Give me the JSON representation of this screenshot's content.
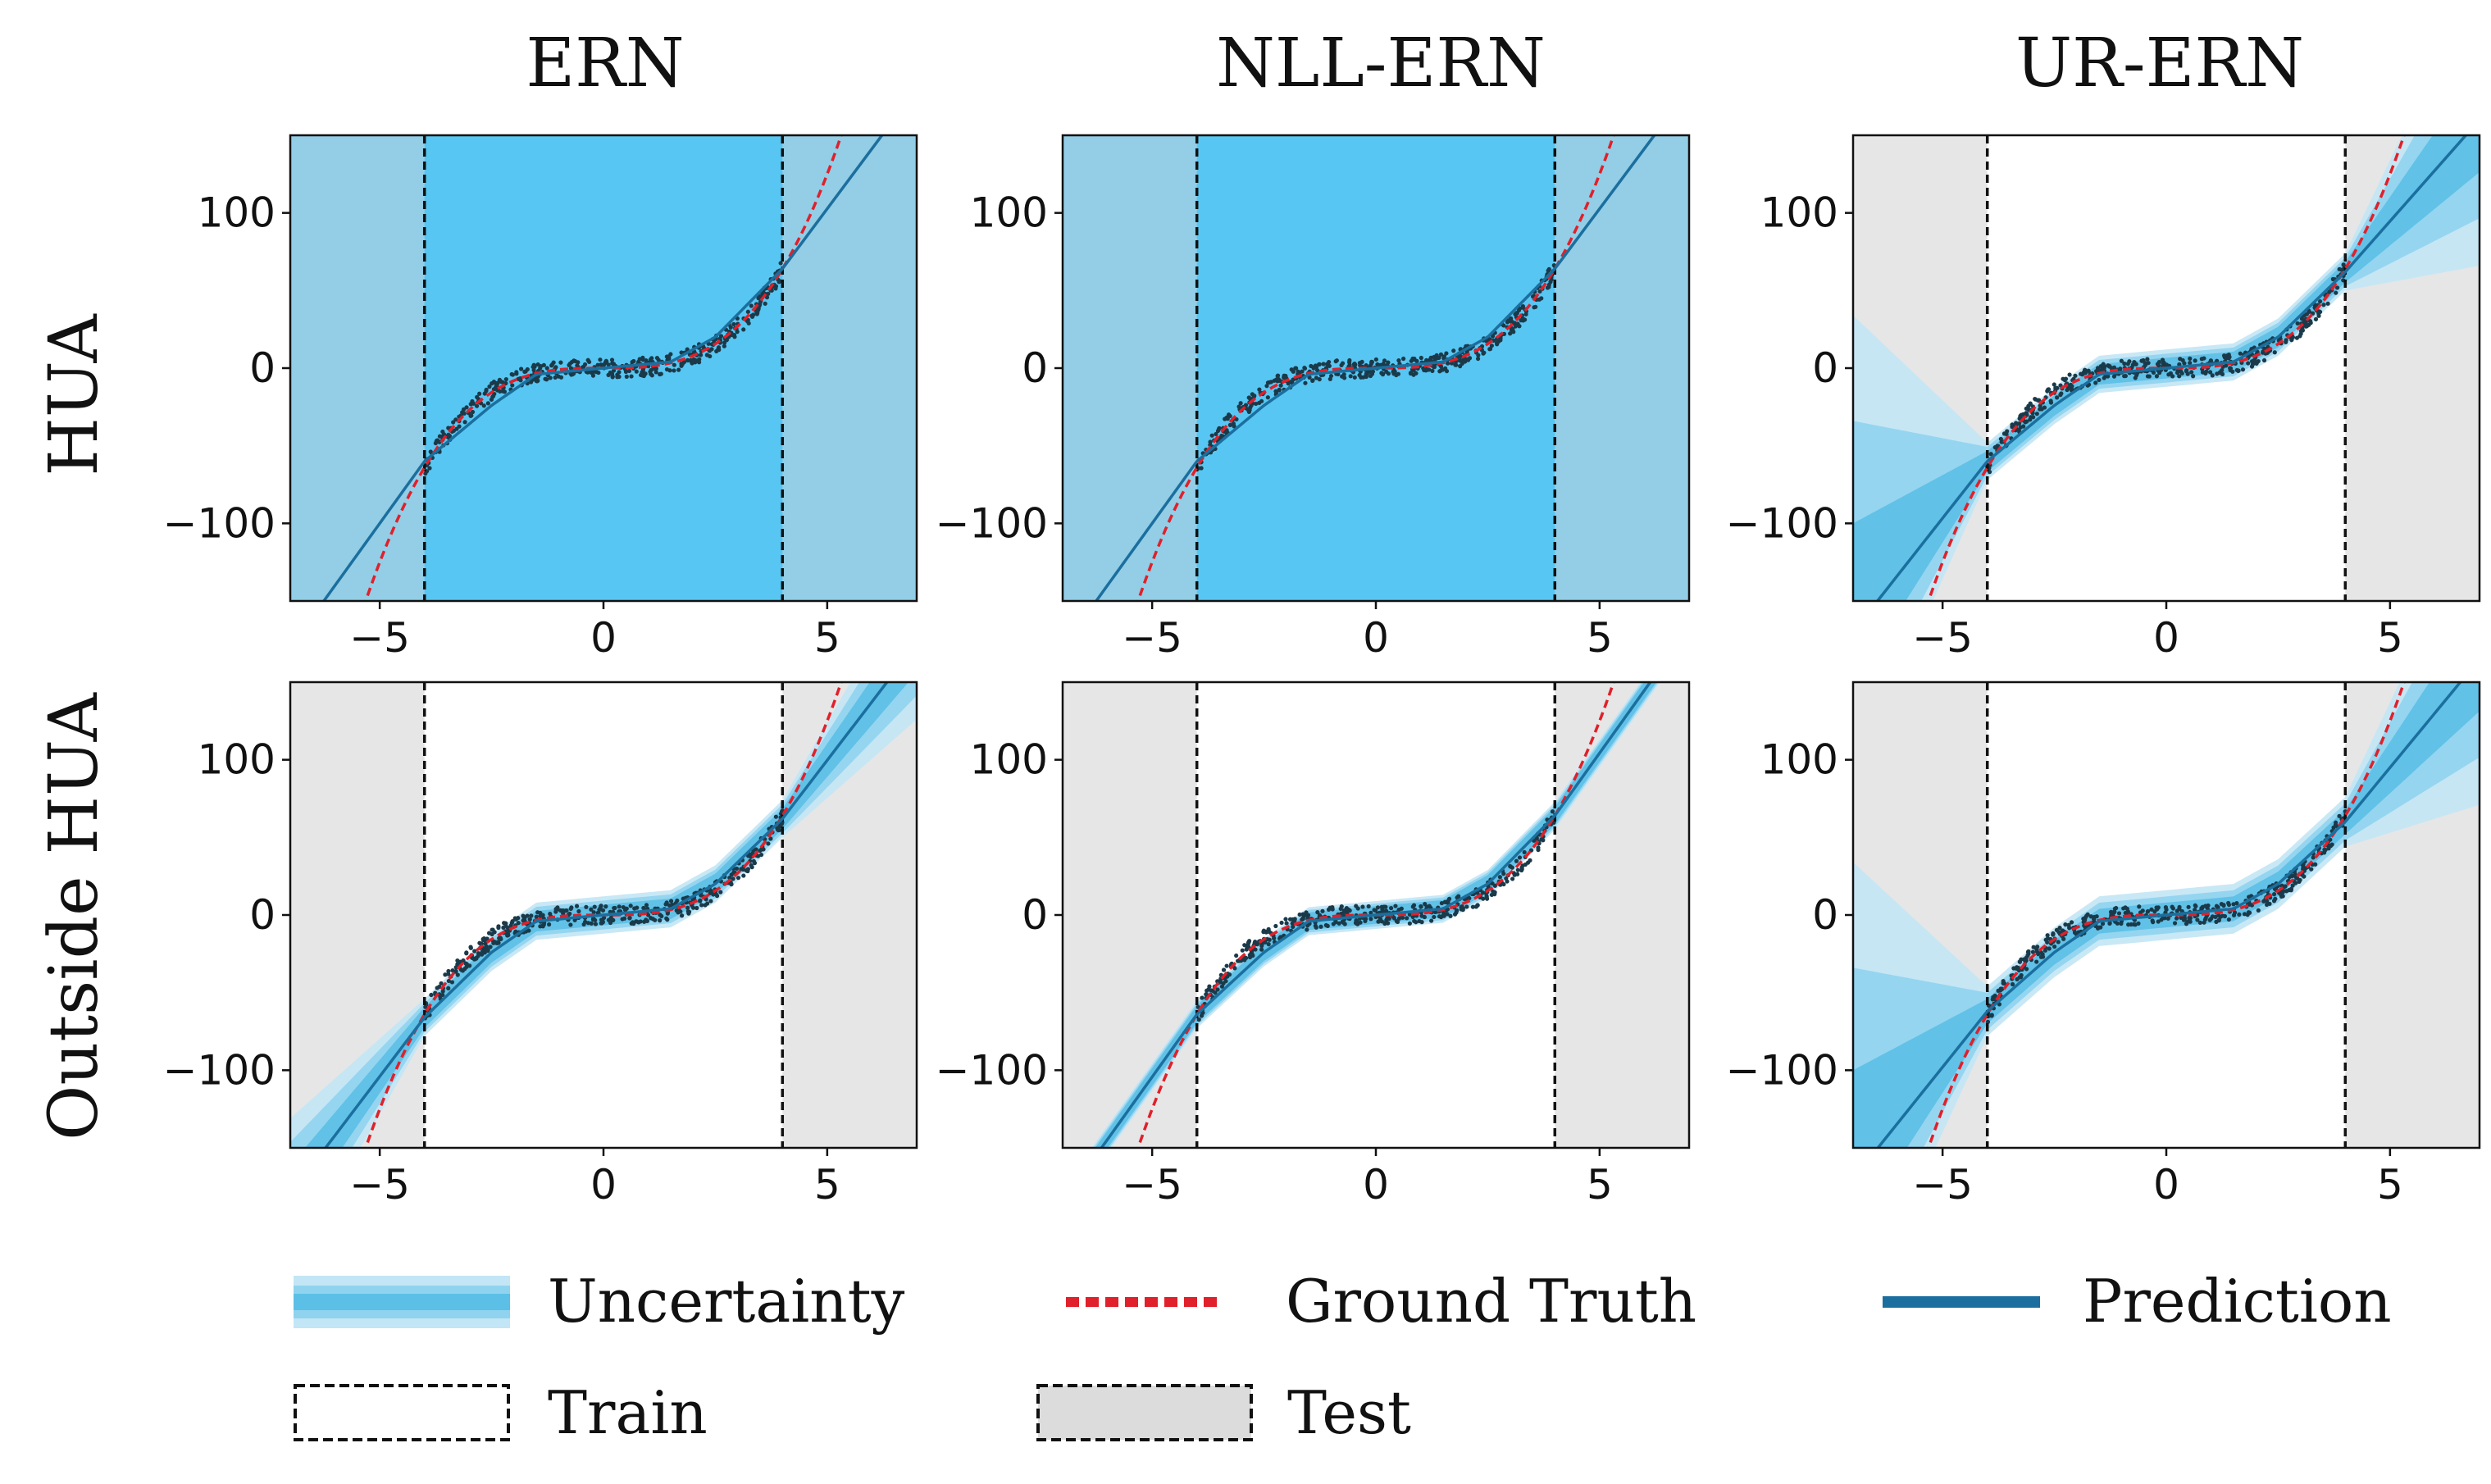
{
  "colors": {
    "prediction": "#1b6f9e",
    "ground_truth": "#e0202a",
    "band_inner": "#5bbfe6",
    "band_mid": "#8fd3ef",
    "band_outer": "#c2e6f5",
    "test_bg": "#e6e6e6",
    "hua_test_bg": "#93cde6",
    "hua_train_bg": "#58c6f2",
    "scatter": "#1a3a4a"
  },
  "legend": {
    "uncertainty": "Uncertainty",
    "ground_truth": "Ground Truth",
    "prediction": "Prediction",
    "train": "Train",
    "test": "Test"
  },
  "chart_data": [
    {
      "type": "line",
      "title": "ERN",
      "row_label": "HUA",
      "xlim": [
        -7,
        7
      ],
      "ylim": [
        -150,
        150
      ],
      "xticks": [
        -5,
        0,
        5
      ],
      "yticks": [
        -100,
        0,
        100
      ],
      "xtick_labels": [
        "−5",
        "0",
        "5"
      ],
      "ytick_labels": [
        "−100",
        "0",
        "100"
      ],
      "train_range": [
        -4,
        4
      ],
      "background_mode": "hua",
      "series": [
        {
          "name": "Ground Truth",
          "function": "x^3",
          "x_range": [
            -7,
            7
          ]
        },
        {
          "name": "Prediction",
          "points": [
            [
              -7,
              -180
            ],
            [
              -4,
              -60
            ],
            [
              -2.5,
              -24
            ],
            [
              -1.5,
              -4
            ],
            [
              0,
              0
            ],
            [
              1.5,
              4
            ],
            [
              2.5,
              20
            ],
            [
              4,
              64
            ],
            [
              7,
              180
            ]
          ]
        }
      ],
      "uncertainty": null
    },
    {
      "type": "line",
      "title": "NLL-ERN",
      "row_label": "",
      "xlim": [
        -7,
        7
      ],
      "ylim": [
        -150,
        150
      ],
      "xticks": [
        -5,
        0,
        5
      ],
      "yticks": [
        -100,
        0,
        100
      ],
      "xtick_labels": [
        "−5",
        "0",
        "5"
      ],
      "ytick_labels": [
        "−100",
        "0",
        "100"
      ],
      "train_range": [
        -4,
        4
      ],
      "background_mode": "hua",
      "series": [
        {
          "name": "Ground Truth",
          "function": "x^3",
          "x_range": [
            -7,
            7
          ]
        },
        {
          "name": "Prediction",
          "points": [
            [
              -7,
              -180
            ],
            [
              -4,
              -60
            ],
            [
              -2.5,
              -24
            ],
            [
              -1.5,
              -4
            ],
            [
              0,
              0
            ],
            [
              1.5,
              4
            ],
            [
              2.5,
              20
            ],
            [
              4,
              64
            ],
            [
              7,
              180
            ]
          ]
        }
      ],
      "uncertainty": null
    },
    {
      "type": "line",
      "title": "UR-ERN",
      "row_label": "",
      "xlim": [
        -7,
        7
      ],
      "ylim": [
        -150,
        150
      ],
      "xticks": [
        -5,
        0,
        5
      ],
      "yticks": [
        -100,
        0,
        100
      ],
      "xtick_labels": [
        "−5",
        "0",
        "5"
      ],
      "ytick_labels": [
        "−100",
        "0",
        "100"
      ],
      "train_range": [
        -4,
        4
      ],
      "background_mode": "test",
      "series": [
        {
          "name": "Ground Truth",
          "function": "x^3",
          "x_range": [
            -7,
            7
          ]
        },
        {
          "name": "Prediction",
          "points": [
            [
              -7,
              -170
            ],
            [
              -4,
              -60
            ],
            [
              -2.5,
              -24
            ],
            [
              -1.5,
              -4
            ],
            [
              0,
              0
            ],
            [
              1.5,
              4
            ],
            [
              2.5,
              20
            ],
            [
              4,
              62
            ],
            [
              7,
              160
            ]
          ]
        }
      ],
      "uncertainty": {
        "inner_width": 8,
        "outer_width_edge": 90,
        "asymmetric_left_upper": 110
      }
    },
    {
      "type": "line",
      "title": "",
      "row_label": "Outside HUA",
      "xlim": [
        -7,
        7
      ],
      "ylim": [
        -150,
        150
      ],
      "xticks": [
        -5,
        0,
        5
      ],
      "yticks": [
        -100,
        0,
        100
      ],
      "xtick_labels": [
        "−5",
        "0",
        "5"
      ],
      "ytick_labels": [
        "−100",
        "0",
        "100"
      ],
      "train_range": [
        -4,
        4
      ],
      "background_mode": "test",
      "series": [
        {
          "name": "Ground Truth",
          "function": "x^3",
          "x_range": [
            -7,
            7
          ]
        },
        {
          "name": "Prediction",
          "points": [
            [
              -7,
              -180
            ],
            [
              -4,
              -66
            ],
            [
              -2.5,
              -24
            ],
            [
              -1.5,
              -4
            ],
            [
              0,
              0
            ],
            [
              1.5,
              4
            ],
            [
              2.5,
              20
            ],
            [
              4,
              62
            ],
            [
              7,
              175
            ]
          ]
        }
      ],
      "uncertainty": {
        "inner_width": 8,
        "outer_width_edge": 45,
        "asymmetric_left_upper": 0
      }
    },
    {
      "type": "line",
      "title": "",
      "row_label": "",
      "xlim": [
        -7,
        7
      ],
      "ylim": [
        -150,
        150
      ],
      "xticks": [
        -5,
        0,
        5
      ],
      "yticks": [
        -100,
        0,
        100
      ],
      "xtick_labels": [
        "−5",
        "0",
        "5"
      ],
      "ytick_labels": [
        "−100",
        "0",
        "100"
      ],
      "train_range": [
        -4,
        4
      ],
      "background_mode": "test",
      "series": [
        {
          "name": "Ground Truth",
          "function": "x^3",
          "x_range": [
            -7,
            7
          ]
        },
        {
          "name": "Prediction",
          "points": [
            [
              -7,
              -185
            ],
            [
              -4,
              -64
            ],
            [
              -2.5,
              -24
            ],
            [
              -1.5,
              -4
            ],
            [
              0,
              0
            ],
            [
              1.5,
              4
            ],
            [
              2.5,
              20
            ],
            [
              4,
              64
            ],
            [
              7,
              185
            ]
          ]
        }
      ],
      "uncertainty": {
        "inner_width": 5,
        "outer_width_edge": 5,
        "asymmetric_left_upper": 0
      }
    },
    {
      "type": "line",
      "title": "",
      "row_label": "",
      "xlim": [
        -7,
        7
      ],
      "ylim": [
        -150,
        150
      ],
      "xticks": [
        -5,
        0,
        5
      ],
      "yticks": [
        -100,
        0,
        100
      ],
      "xtick_labels": [
        "−5",
        "0",
        "5"
      ],
      "ytick_labels": [
        "−100",
        "0",
        "100"
      ],
      "train_range": [
        -4,
        4
      ],
      "background_mode": "test",
      "series": [
        {
          "name": "Ground Truth",
          "function": "x^3",
          "x_range": [
            -7,
            7
          ]
        },
        {
          "name": "Prediction",
          "points": [
            [
              -7,
              -170
            ],
            [
              -4,
              -62
            ],
            [
              -2.5,
              -24
            ],
            [
              -1.5,
              -4
            ],
            [
              0,
              0
            ],
            [
              1.5,
              4
            ],
            [
              2.5,
              20
            ],
            [
              4,
              60
            ],
            [
              7,
              165
            ]
          ]
        }
      ],
      "uncertainty": {
        "inner_width": 12,
        "outer_width_edge": 90,
        "asymmetric_left_upper": 110
      }
    }
  ]
}
